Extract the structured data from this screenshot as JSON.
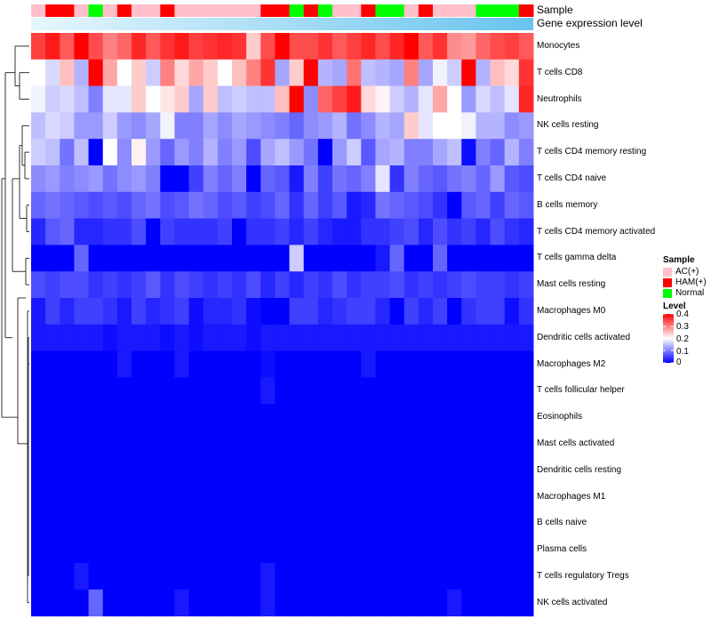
{
  "chart_data": {
    "type": "heatmap",
    "title": "",
    "annotation_rows": [
      "Sample",
      "Gene expression level"
    ],
    "sample_groups": [
      "AC(+)",
      "HAM(+)",
      "HAM(+)",
      "AC(+)",
      "Normal",
      "AC(+)",
      "HAM(+)",
      "AC(+)",
      "AC(+)",
      "HAM(+)",
      "AC(+)",
      "AC(+)",
      "AC(+)",
      "AC(+)",
      "AC(+)",
      "AC(+)",
      "HAM(+)",
      "HAM(+)",
      "Normal",
      "HAM(+)",
      "Normal",
      "AC(+)",
      "AC(+)",
      "HAM(+)",
      "Normal",
      "Normal",
      "AC(+)",
      "HAM(+)",
      "AC(+)",
      "AC(+)",
      "AC(+)",
      "Normal",
      "Normal",
      "Normal",
      "HAM(+)"
    ],
    "rows": [
      "Monocytes",
      "T cells CD8",
      "Neutrophils",
      "NK cells resting",
      "T cells CD4 memory resting",
      "T cells CD4 naive",
      "B cells memory",
      "T cells CD4 memory activated",
      "T cells gamma delta",
      "Mast cells resting",
      "Macrophages M0",
      "Dendritic cells activated",
      "Macrophages M2",
      "T cells follicular helper",
      "Eosinophils",
      "Mast cells activated",
      "Dendritic cells resting",
      "Macrophages M1",
      "B cells naive",
      "Plasma cells",
      "T cells regulatory  Tregs",
      "NK cells activated"
    ],
    "values": [
      [
        0.35,
        0.38,
        0.33,
        0.42,
        0.34,
        0.3,
        0.32,
        0.37,
        0.33,
        0.36,
        0.38,
        0.35,
        0.36,
        0.37,
        0.36,
        0.24,
        0.34,
        0.41,
        0.34,
        0.34,
        0.36,
        0.33,
        0.35,
        0.37,
        0.34,
        0.37,
        0.4,
        0.33,
        0.36,
        0.29,
        0.28,
        0.32,
        0.34,
        0.35,
        0.33
      ],
      [
        0.2,
        0.17,
        0.25,
        0.14,
        0.41,
        0.27,
        0.2,
        0.24,
        0.16,
        0.3,
        0.23,
        0.27,
        0.24,
        0.2,
        0.25,
        0.3,
        0.36,
        0.13,
        0.24,
        0.4,
        0.14,
        0.13,
        0.31,
        0.15,
        0.14,
        0.13,
        0.3,
        0.13,
        0.19,
        0.16,
        0.41,
        0.14,
        0.25,
        0.23,
        0.36
      ],
      [
        0.19,
        0.16,
        0.17,
        0.15,
        0.1,
        0.18,
        0.18,
        0.24,
        0.2,
        0.22,
        0.24,
        0.13,
        0.24,
        0.15,
        0.16,
        0.15,
        0.15,
        0.25,
        0.42,
        0.11,
        0.32,
        0.35,
        0.38,
        0.23,
        0.21,
        0.16,
        0.14,
        0.18,
        0.27,
        0.2,
        0.12,
        0.17,
        0.15,
        0.18,
        0.37
      ],
      [
        0.15,
        0.17,
        0.16,
        0.12,
        0.12,
        0.16,
        0.12,
        0.11,
        0.13,
        0.19,
        0.1,
        0.1,
        0.13,
        0.11,
        0.13,
        0.12,
        0.11,
        0.1,
        0.08,
        0.11,
        0.12,
        0.14,
        0.09,
        0.11,
        0.14,
        0.13,
        0.24,
        0.18,
        0.2,
        0.2,
        0.19,
        0.14,
        0.14,
        0.11,
        0.12
      ],
      [
        0.16,
        0.15,
        0.09,
        0.15,
        0.0,
        0.2,
        0.11,
        0.21,
        0.12,
        0.08,
        0.12,
        0.1,
        0.14,
        0.1,
        0.12,
        0.06,
        0.13,
        0.15,
        0.12,
        0.09,
        0.0,
        0.12,
        0.16,
        0.07,
        0.13,
        0.14,
        0.1,
        0.1,
        0.13,
        0.15,
        0.01,
        0.1,
        0.08,
        0.14,
        0.1
      ],
      [
        0.11,
        0.12,
        0.1,
        0.11,
        0.12,
        0.09,
        0.11,
        0.12,
        0.1,
        0.0,
        0.0,
        0.05,
        0.1,
        0.08,
        0.1,
        0.0,
        0.08,
        0.07,
        0.02,
        0.1,
        0.05,
        0.09,
        0.08,
        0.1,
        0.18,
        0.04,
        0.1,
        0.08,
        0.07,
        0.09,
        0.1,
        0.08,
        0.12,
        0.07,
        0.06
      ],
      [
        0.08,
        0.09,
        0.08,
        0.07,
        0.06,
        0.07,
        0.06,
        0.08,
        0.09,
        0.06,
        0.07,
        0.09,
        0.08,
        0.06,
        0.07,
        0.05,
        0.06,
        0.08,
        0.04,
        0.08,
        0.05,
        0.07,
        0.02,
        0.03,
        0.09,
        0.08,
        0.07,
        0.06,
        0.04,
        0.0,
        0.07,
        0.08,
        0.05,
        0.08,
        0.07
      ],
      [
        0.03,
        0.07,
        0.08,
        0.03,
        0.03,
        0.04,
        0.04,
        0.06,
        0.0,
        0.05,
        0.04,
        0.04,
        0.04,
        0.05,
        0.0,
        0.04,
        0.04,
        0.05,
        0.03,
        0.05,
        0.03,
        0.02,
        0.02,
        0.04,
        0.04,
        0.05,
        0.06,
        0.03,
        0.06,
        0.04,
        0.05,
        0.03,
        0.06,
        0.04,
        0.03
      ],
      [
        0.0,
        0.0,
        0.0,
        0.08,
        0.0,
        0.0,
        0.0,
        0.0,
        0.0,
        0.0,
        0.0,
        0.0,
        0.0,
        0.0,
        0.0,
        0.0,
        0.0,
        0.0,
        0.16,
        0.0,
        0.0,
        0.0,
        0.0,
        0.0,
        0.02,
        0.08,
        0.0,
        0.0,
        0.08,
        0.0,
        0.0,
        0.0,
        0.0,
        0.0,
        0.0
      ],
      [
        0.06,
        0.05,
        0.06,
        0.06,
        0.04,
        0.05,
        0.04,
        0.05,
        0.07,
        0.04,
        0.06,
        0.05,
        0.04,
        0.05,
        0.04,
        0.06,
        0.03,
        0.05,
        0.03,
        0.05,
        0.04,
        0.06,
        0.04,
        0.05,
        0.05,
        0.06,
        0.04,
        0.05,
        0.04,
        0.05,
        0.06,
        0.05,
        0.05,
        0.04,
        0.05
      ],
      [
        0.02,
        0.05,
        0.03,
        0.05,
        0.05,
        0.04,
        0.02,
        0.05,
        0.03,
        0.04,
        0.05,
        0.01,
        0.03,
        0.03,
        0.04,
        0.01,
        0.0,
        0.0,
        0.05,
        0.05,
        0.03,
        0.04,
        0.05,
        0.05,
        0.03,
        0.0,
        0.05,
        0.03,
        0.05,
        0.0,
        0.04,
        0.05,
        0.05,
        0.01,
        0.04
      ],
      [
        0.02,
        0.02,
        0.02,
        0.02,
        0.02,
        0.01,
        0.02,
        0.02,
        0.02,
        0.01,
        0.02,
        0.01,
        0.02,
        0.02,
        0.02,
        0.01,
        0.02,
        0.02,
        0.02,
        0.02,
        0.02,
        0.02,
        0.02,
        0.02,
        0.02,
        0.02,
        0.02,
        0.02,
        0.02,
        0.02,
        0.02,
        0.02,
        0.02,
        0.02,
        0.02
      ],
      [
        0.0,
        0.0,
        0.0,
        0.0,
        0.0,
        0.0,
        0.02,
        0.0,
        0.0,
        0.0,
        0.02,
        0.0,
        0.0,
        0.0,
        0.0,
        0.0,
        0.01,
        0.0,
        0.0,
        0.0,
        0.0,
        0.0,
        0.0,
        0.02,
        0.0,
        0.0,
        0.0,
        0.0,
        0.0,
        0.0,
        0.0,
        0.0,
        0.0,
        0.0,
        0.0
      ],
      [
        0.0,
        0.0,
        0.0,
        0.0,
        0.0,
        0.0,
        0.0,
        0.0,
        0.0,
        0.0,
        0.0,
        0.0,
        0.0,
        0.0,
        0.0,
        0.0,
        0.02,
        0.0,
        0.0,
        0.0,
        0.0,
        0.0,
        0.0,
        0.0,
        0.0,
        0.0,
        0.0,
        0.0,
        0.0,
        0.0,
        0.0,
        0.0,
        0.0,
        0.0,
        0.0
      ],
      [
        0.0,
        0.0,
        0.0,
        0.0,
        0.0,
        0.0,
        0.0,
        0.0,
        0.0,
        0.0,
        0.0,
        0.0,
        0.0,
        0.0,
        0.0,
        0.0,
        0.0,
        0.0,
        0.0,
        0.0,
        0.0,
        0.0,
        0.0,
        0.0,
        0.0,
        0.0,
        0.0,
        0.0,
        0.0,
        0.0,
        0.0,
        0.0,
        0.0,
        0.0,
        0.0
      ],
      [
        0.0,
        0.0,
        0.0,
        0.0,
        0.0,
        0.0,
        0.0,
        0.0,
        0.0,
        0.0,
        0.0,
        0.0,
        0.0,
        0.0,
        0.0,
        0.0,
        0.0,
        0.0,
        0.0,
        0.0,
        0.0,
        0.0,
        0.0,
        0.0,
        0.0,
        0.0,
        0.0,
        0.0,
        0.0,
        0.0,
        0.0,
        0.0,
        0.0,
        0.0,
        0.0
      ],
      [
        0.0,
        0.0,
        0.0,
        0.0,
        0.0,
        0.0,
        0.0,
        0.0,
        0.0,
        0.0,
        0.0,
        0.0,
        0.0,
        0.0,
        0.0,
        0.0,
        0.0,
        0.0,
        0.0,
        0.0,
        0.0,
        0.0,
        0.0,
        0.0,
        0.0,
        0.0,
        0.0,
        0.0,
        0.0,
        0.0,
        0.0,
        0.0,
        0.0,
        0.0,
        0.0
      ],
      [
        0.0,
        0.0,
        0.0,
        0.0,
        0.0,
        0.0,
        0.0,
        0.0,
        0.0,
        0.0,
        0.0,
        0.0,
        0.0,
        0.0,
        0.0,
        0.0,
        0.0,
        0.0,
        0.0,
        0.0,
        0.0,
        0.0,
        0.0,
        0.0,
        0.0,
        0.0,
        0.0,
        0.0,
        0.0,
        0.0,
        0.0,
        0.0,
        0.0,
        0.0,
        0.0
      ],
      [
        0.0,
        0.0,
        0.0,
        0.0,
        0.0,
        0.0,
        0.0,
        0.0,
        0.0,
        0.0,
        0.0,
        0.0,
        0.0,
        0.0,
        0.0,
        0.0,
        0.0,
        0.0,
        0.0,
        0.0,
        0.0,
        0.0,
        0.0,
        0.0,
        0.0,
        0.0,
        0.0,
        0.0,
        0.0,
        0.0,
        0.0,
        0.0,
        0.0,
        0.0,
        0.0
      ],
      [
        0.0,
        0.0,
        0.0,
        0.0,
        0.0,
        0.0,
        0.0,
        0.0,
        0.0,
        0.0,
        0.0,
        0.0,
        0.0,
        0.0,
        0.0,
        0.0,
        0.0,
        0.0,
        0.0,
        0.0,
        0.0,
        0.0,
        0.0,
        0.0,
        0.0,
        0.0,
        0.0,
        0.0,
        0.0,
        0.0,
        0.0,
        0.0,
        0.0,
        0.0,
        0.0
      ],
      [
        0.0,
        0.0,
        0.0,
        0.02,
        0.0,
        0.0,
        0.0,
        0.0,
        0.0,
        0.0,
        0.0,
        0.0,
        0.0,
        0.0,
        0.0,
        0.0,
        0.02,
        0.0,
        0.0,
        0.0,
        0.0,
        0.0,
        0.0,
        0.0,
        0.0,
        0.0,
        0.0,
        0.0,
        0.0,
        0.0,
        0.0,
        0.0,
        0.0,
        0.0,
        0.0
      ],
      [
        0.0,
        0.0,
        0.0,
        0.0,
        0.08,
        0.0,
        0.0,
        0.0,
        0.0,
        0.0,
        0.02,
        0.0,
        0.0,
        0.0,
        0.0,
        0.0,
        0.02,
        0.0,
        0.0,
        0.0,
        0.0,
        0.0,
        0.0,
        0.0,
        0.0,
        0.0,
        0.0,
        0.0,
        0.0,
        0.02,
        0.0,
        0.0,
        0.0,
        0.0,
        0.0
      ]
    ],
    "color_scale": {
      "range": [
        0,
        0.4
      ],
      "stops": [
        {
          "value": 0,
          "color": "#0000ff"
        },
        {
          "value": 0.2,
          "color": "#ffffff"
        },
        {
          "value": 0.4,
          "color": "#ff0000"
        }
      ]
    },
    "expression_bar_color": "#69c4ee",
    "legends": {
      "sample": {
        "title": "Sample",
        "entries": [
          {
            "label": "AC(+)",
            "color": "#ffc0cb"
          },
          {
            "label": "HAM(+)",
            "color": "#ff0000"
          },
          {
            "label": "Normal",
            "color": "#00ff00"
          }
        ]
      },
      "level": {
        "title": "Level",
        "ticks": [
          "0.4",
          "0.3",
          "0.2",
          "0.1",
          "0"
        ]
      }
    }
  }
}
